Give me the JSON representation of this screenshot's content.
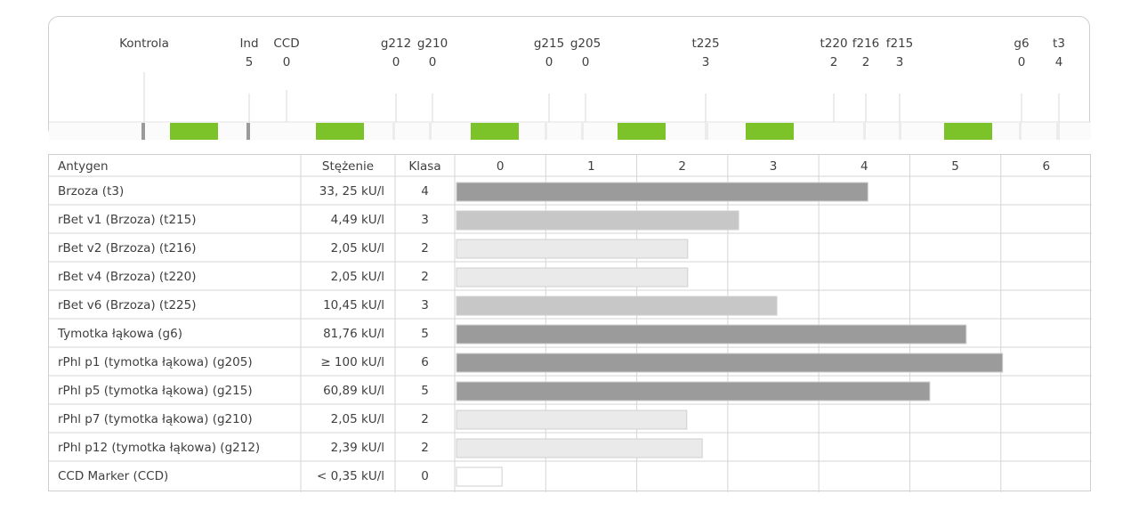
{
  "colors": {
    "green": "#7cc229",
    "gray_mark": "#9a9a9a",
    "class_high": "#9b9b9b",
    "class_mid": "#c7c7c7",
    "class_low": "#eaeaea",
    "border": "#d0d0d0",
    "text": "#3f3f3f"
  },
  "strip": {
    "labels": [
      {
        "name": "Kontrola",
        "value": ""
      },
      {
        "name": "Ind",
        "value": "5"
      },
      {
        "name": "CCD",
        "value": "0"
      },
      {
        "name": "g212",
        "value": "0"
      },
      {
        "name": "g210",
        "value": "0"
      },
      {
        "name": "g215",
        "value": "0"
      },
      {
        "name": "g205",
        "value": "0"
      },
      {
        "name": "t225",
        "value": "3"
      },
      {
        "name": "t220",
        "value": "2"
      },
      {
        "name": "f216",
        "value": "2"
      },
      {
        "name": "f215",
        "value": "3"
      },
      {
        "name": "g6",
        "value": "0"
      },
      {
        "name": "t3",
        "value": "4"
      }
    ]
  },
  "table": {
    "headers": {
      "antigen": "Antygen",
      "concentration": "Stężenie",
      "class": "Klasa"
    }
  },
  "chart_data": {
    "type": "bar",
    "orientation": "horizontal",
    "xlim": [
      0,
      6
    ],
    "x_ticks": [
      "0",
      "1",
      "2",
      "3",
      "4",
      "5",
      "6"
    ],
    "grid": true,
    "rows": [
      {
        "antigen": "Brzoza (t3)",
        "concentration": "33, 25 kU/l",
        "class": "4",
        "value": 4.52
      },
      {
        "antigen": "rBet v1 (Brzoza) (t215)",
        "concentration": "4,49 kU/l",
        "class": "3",
        "value": 3.1
      },
      {
        "antigen": "rBet v2 (Brzoza) (t216)",
        "concentration": "2,05 kU/l",
        "class": "2",
        "value": 2.54
      },
      {
        "antigen": "rBet v4 (Brzoza) (t220)",
        "concentration": "2,05 kU/l",
        "class": "2",
        "value": 2.54
      },
      {
        "antigen": "rBet v6 (Brzoza) (t225)",
        "concentration": "10,45 kU/l",
        "class": "3",
        "value": 3.52
      },
      {
        "antigen": "Tymotka łąkowa (g6)",
        "concentration": "81,76 kU/l",
        "class": "5",
        "value": 5.6
      },
      {
        "antigen": "rPhl p1 (tymotka łąkowa) (g205)",
        "concentration": "≥ 100 kU/l",
        "class": "6",
        "value": 6.0
      },
      {
        "antigen": "rPhl p5 (tymotka łąkowa) (g215)",
        "concentration": "60,89 kU/l",
        "class": "5",
        "value": 5.2
      },
      {
        "antigen": "rPhl p7 (tymotka łąkowa) (g210)",
        "concentration": "2,05 kU/l",
        "class": "2",
        "value": 2.53
      },
      {
        "antigen": "rPhl p12 (tymotka łąkowa) (g212)",
        "concentration": "2,39 kU/l",
        "class": "2",
        "value": 2.7
      },
      {
        "antigen": "CCD Marker (CCD)",
        "concentration": "< 0,35 kU/l",
        "class": "0",
        "value": 0.5
      }
    ]
  }
}
